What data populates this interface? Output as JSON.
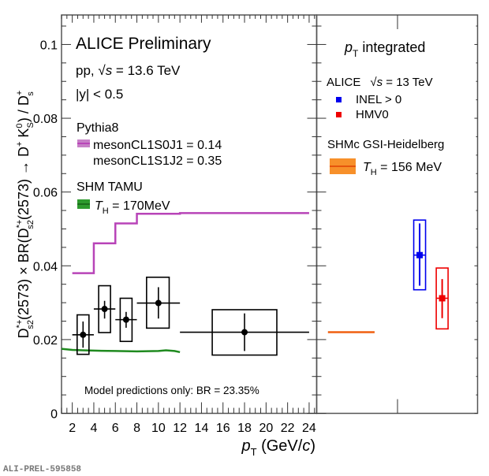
{
  "chart_data": [
    {
      "type": "scatter",
      "panel": "left",
      "xlabel": "p_T (GeV/c)",
      "ylabel": "D*+_s2(2573) × BR(D*+_s2(2573) → D+ K0_S) / D+_s",
      "xlim": [
        1,
        24.7
      ],
      "ylim": [
        0,
        0.108
      ],
      "x_ticks": [
        2,
        4,
        6,
        8,
        10,
        12,
        14,
        16,
        18,
        20,
        22,
        24
      ],
      "y_ticks": [
        0,
        0.02,
        0.04,
        0.06,
        0.08,
        0.1
      ],
      "y_tick_labels": [
        "0",
        "0.02",
        "0.04",
        "0.06",
        "0.08",
        "0.1"
      ],
      "annotations": {
        "title": "ALICE Preliminary",
        "system_prefix": "pp, ",
        "sqrt_s": "s",
        "energy": " = 13.6 TeV",
        "rapidity": "|y| < 0.5",
        "model_note": "Model predictions only: BR = 23.35%"
      },
      "legend": {
        "pythia_title": "Pythia8",
        "pythia_line1": "mesonCL1S0J1 = 0.14",
        "pythia_line2": "mesonCL1S1J2 = 0.35",
        "shm_title": "SHM TAMU",
        "shm_entry": " = 170MeV",
        "shm_symbol": "T",
        "shm_sub": "H"
      },
      "data_points": [
        {
          "x": 3,
          "xlow": 2,
          "xhigh": 4,
          "y": 0.0213,
          "stat_low": 0.0178,
          "stat_high": 0.0249,
          "syst_low": 0.016,
          "syst_high": 0.0267,
          "box_xlow": 2.45,
          "box_xhigh": 3.55
        },
        {
          "x": 5,
          "xlow": 4,
          "xhigh": 6,
          "y": 0.0283,
          "stat_low": 0.0257,
          "stat_high": 0.0305,
          "syst_low": 0.0219,
          "syst_high": 0.0346,
          "box_xlow": 4.45,
          "box_xhigh": 5.55
        },
        {
          "x": 7,
          "xlow": 6,
          "xhigh": 8,
          "y": 0.0254,
          "stat_low": 0.0232,
          "stat_high": 0.0275,
          "syst_low": 0.0195,
          "syst_high": 0.0312,
          "box_xlow": 6.45,
          "box_xhigh": 7.55
        },
        {
          "x": 10,
          "xlow": 8,
          "xhigh": 12,
          "y": 0.0299,
          "stat_low": 0.0257,
          "stat_high": 0.0342,
          "syst_low": 0.0231,
          "syst_high": 0.0369,
          "box_xlow": 8.9,
          "box_xhigh": 11.0
        },
        {
          "x": 18,
          "xlow": 12,
          "xhigh": 24,
          "y": 0.022,
          "stat_low": 0.0169,
          "stat_high": 0.0271,
          "syst_low": 0.0158,
          "syst_high": 0.0281,
          "box_xlow": 15.0,
          "box_xhigh": 21.0
        }
      ],
      "series": [
        {
          "name": "Pythia8 mesonCL1S0J1=0.14 / mesonCL1S1J2=0.35",
          "color": "#b844b8",
          "type": "step",
          "x": [
            2,
            4,
            4,
            6,
            6,
            8,
            8,
            12,
            12,
            24
          ],
          "y": [
            0.038,
            0.038,
            0.0461,
            0.0461,
            0.0515,
            0.0515,
            0.0541,
            0.0541,
            0.0543,
            0.0543
          ]
        },
        {
          "name": "SHM TAMU T_H = 170MeV",
          "color": "#1f8a1f",
          "type": "line",
          "x": [
            1,
            2,
            3,
            4,
            6,
            8,
            10,
            10.7,
            11.5,
            12
          ],
          "y": [
            0.0175,
            0.0172,
            0.0171,
            0.017,
            0.0169,
            0.0168,
            0.0169,
            0.0171,
            0.0169,
            0.0166
          ]
        }
      ]
    },
    {
      "type": "scatter",
      "panel": "right",
      "title": "p_T integrated",
      "title_main": "p",
      "title_sub": "T",
      "title_rest": " integrated",
      "ylim": [
        0,
        0.108
      ],
      "legend": {
        "alice_prefix": "ALICE",
        "alice_energy": " = 13 TeV",
        "inel": "INEL > 0",
        "hmv0": "HMV0",
        "shmc_title": "SHMc GSI-Heidelberg",
        "shmc_entry": " = 156 MeV",
        "shmc_symbol": "T",
        "shmc_sub": "H"
      },
      "data_points": [
        {
          "name": "INEL > 0",
          "color": "#0000ee",
          "pos": 0.64,
          "y": 0.0429,
          "stat_low": 0.0346,
          "stat_high": 0.0515,
          "syst_low": 0.0335,
          "syst_high": 0.0524
        },
        {
          "name": "HMV0",
          "color": "#ee0000",
          "pos": 0.78,
          "y": 0.0312,
          "stat_low": 0.0258,
          "stat_high": 0.0364,
          "syst_low": 0.0229,
          "syst_high": 0.0394
        }
      ],
      "model_line": {
        "name": "SHMc GSI-Heidelberg T_H = 156 MeV",
        "color": "#f06010",
        "y": 0.022,
        "pos_from": 0.07,
        "pos_to": 0.36
      }
    }
  ],
  "footer": {
    "id": "ALI-PREL-595858"
  },
  "axis_text": {
    "xlabel_p": "p",
    "xlabel_sub": "T",
    "xlabel_rest": " (GeV/",
    "xlabel_c": "c",
    "xlabel_close": ")"
  }
}
